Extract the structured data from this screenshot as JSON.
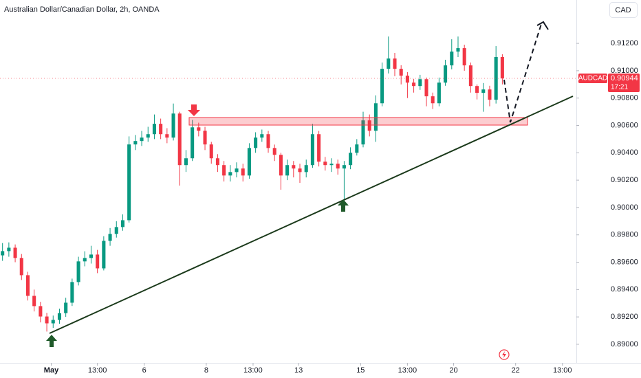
{
  "chart_data": {
    "type": "candlestick",
    "title": "Australian Dollar/Canadian Dollar, 2h, OANDA",
    "currency_button": "CAD",
    "symbol": "AUDCAD",
    "last_price": 0.90944,
    "countdown": "17:21",
    "up_color": "#089981",
    "down_color": "#f23645",
    "grid": false,
    "open": [
      0.8965,
      0.89681,
      0.89706,
      0.89631,
      0.89505,
      0.89354,
      0.89279,
      0.89203,
      0.89153,
      0.89178,
      0.89228,
      0.89304,
      0.89455,
      0.89606,
      0.89631,
      0.89656,
      0.89555,
      0.89756,
      0.89807,
      0.89857,
      0.89907,
      0.90461,
      0.90486,
      0.90511,
      0.90536,
      0.90612,
      0.90536,
      0.90511,
      0.90687,
      0.9031,
      0.9036,
      0.90586,
      0.90561,
      0.90461,
      0.9036,
      0.9031,
      0.90234,
      0.90259,
      0.90285,
      0.90234,
      0.90435,
      0.90511,
      0.90536,
      0.90435,
      0.90385,
      0.90234,
      0.9031,
      0.90285,
      0.90259,
      0.9031,
      0.90536,
      0.90335,
      0.9031,
      0.9032,
      0.90285,
      0.9031,
      0.904,
      0.90461,
      0.90637,
      0.90561,
      0.90762,
      0.91014,
      0.91089,
      0.91014,
      0.90964,
      0.90913,
      0.90888,
      0.90938,
      0.90813,
      0.90762,
      0.90913,
      0.91039,
      0.9114,
      0.91165,
      0.91039,
      0.90888,
      0.90838,
      0.90863,
      0.90788,
      0.911
    ],
    "high": [
      0.8974,
      0.89745,
      0.8973,
      0.8966,
      0.8953,
      0.894,
      0.8931,
      0.8923,
      0.8921,
      0.8926,
      0.8934,
      0.8948,
      0.8964,
      0.8968,
      0.8972,
      0.8969,
      0.8979,
      0.8985,
      0.899,
      0.8995,
      0.9052,
      0.9053,
      0.9056,
      0.9059,
      0.9068,
      0.9065,
      0.9058,
      0.9076,
      0.907,
      0.9042,
      0.9064,
      0.9062,
      0.9059,
      0.9048,
      0.9039,
      0.9034,
      0.9031,
      0.9033,
      0.9032,
      0.9047,
      0.9055,
      0.9057,
      0.9056,
      0.9046,
      0.904,
      0.9035,
      0.9034,
      0.9032,
      0.9035,
      0.90612,
      0.9056,
      0.9037,
      0.9036,
      0.9035,
      0.9034,
      0.9044,
      0.905,
      0.907,
      0.9068,
      0.9082,
      0.9106,
      0.9125,
      0.9113,
      0.9104,
      0.9099,
      0.9094,
      0.9097,
      0.9095,
      0.9084,
      0.9095,
      0.9108,
      0.9123,
      0.9125,
      0.9119,
      0.9106,
      0.909,
      0.9091,
      0.9089,
      0.9118,
      0.9112
    ],
    "low": [
      0.8961,
      0.8964,
      0.896,
      0.8947,
      0.8932,
      0.8924,
      0.8916,
      0.89093,
      0.8912,
      0.8915,
      0.892,
      0.8928,
      0.8943,
      0.8957,
      0.8959,
      0.8952,
      0.8954,
      0.8972,
      0.8978,
      0.8983,
      0.8989,
      0.9042,
      0.9045,
      0.9048,
      0.905,
      0.905,
      0.9047,
      0.9049,
      0.9016,
      0.9026,
      0.9034,
      0.9052,
      0.9042,
      0.9032,
      0.9026,
      0.9019,
      0.9019,
      0.9022,
      0.9019,
      0.9021,
      0.904,
      0.9048,
      0.904,
      0.9034,
      0.9013,
      0.902,
      0.9022,
      0.9018,
      0.9022,
      0.9029,
      0.903,
      0.9027,
      0.9026,
      0.9024,
      0.90058,
      0.9028,
      0.9038,
      0.9044,
      0.9052,
      0.9048,
      0.9074,
      0.9098,
      0.9096,
      0.909,
      0.908,
      0.9084,
      0.9086,
      0.9074,
      0.9072,
      0.9074,
      0.9089,
      0.9101,
      0.911,
      0.91,
      0.9084,
      0.9079,
      0.907,
      0.9074,
      0.9076,
      0.909
    ],
    "close": [
      0.89681,
      0.89706,
      0.89631,
      0.89505,
      0.89354,
      0.89279,
      0.89203,
      0.89153,
      0.89178,
      0.89228,
      0.89304,
      0.89455,
      0.89606,
      0.89631,
      0.89656,
      0.89555,
      0.89756,
      0.89807,
      0.89857,
      0.89907,
      0.90461,
      0.90486,
      0.90511,
      0.90536,
      0.90612,
      0.90536,
      0.90511,
      0.90687,
      0.9031,
      0.9036,
      0.90586,
      0.90561,
      0.90461,
      0.9036,
      0.9031,
      0.90234,
      0.90259,
      0.90285,
      0.90234,
      0.90435,
      0.90511,
      0.90536,
      0.90435,
      0.90385,
      0.90234,
      0.9031,
      0.90285,
      0.90259,
      0.9031,
      0.90536,
      0.90335,
      0.9031,
      0.9032,
      0.90285,
      0.9031,
      0.904,
      0.90461,
      0.90637,
      0.90561,
      0.90762,
      0.91014,
      0.91089,
      0.91014,
      0.90964,
      0.90913,
      0.90888,
      0.90938,
      0.90813,
      0.90762,
      0.90913,
      0.91039,
      0.9114,
      0.91165,
      0.91039,
      0.90888,
      0.90838,
      0.90863,
      0.90788,
      0.911,
      0.90944
    ],
    "xlim": [
      -0.4,
      90.7
    ],
    "xticks": [
      {
        "value": 7.7,
        "label": "May"
      },
      {
        "value": 15,
        "label": "13:00"
      },
      {
        "value": 22.4,
        "label": "6"
      },
      {
        "value": 32.2,
        "label": "8"
      },
      {
        "value": 39.6,
        "label": "13:00"
      },
      {
        "value": 46.8,
        "label": "13"
      },
      {
        "value": 56.6,
        "label": "15"
      },
      {
        "value": 64,
        "label": "13:00"
      },
      {
        "value": 71.3,
        "label": "20"
      },
      {
        "value": 81.1,
        "label": "22"
      },
      {
        "value": 88.5,
        "label": "13:00"
      }
    ],
    "ylim": [
      0.88864,
      0.91517
    ],
    "yticks": [
      {
        "value": 0.89,
        "label": "0.89000"
      },
      {
        "value": 0.892,
        "label": "0.89200"
      },
      {
        "value": 0.894,
        "label": "0.89400"
      },
      {
        "value": 0.896,
        "label": "0.89600"
      },
      {
        "value": 0.898,
        "label": "0.89800"
      },
      {
        "value": 0.9,
        "label": "0.90000"
      },
      {
        "value": 0.902,
        "label": "0.90200"
      },
      {
        "value": 0.904,
        "label": "0.90400"
      },
      {
        "value": 0.906,
        "label": "0.90600"
      },
      {
        "value": 0.908,
        "label": "0.90800"
      },
      {
        "value": 0.91,
        "label": "0.91000"
      },
      {
        "value": 0.912,
        "label": "0.91200"
      }
    ]
  }
}
